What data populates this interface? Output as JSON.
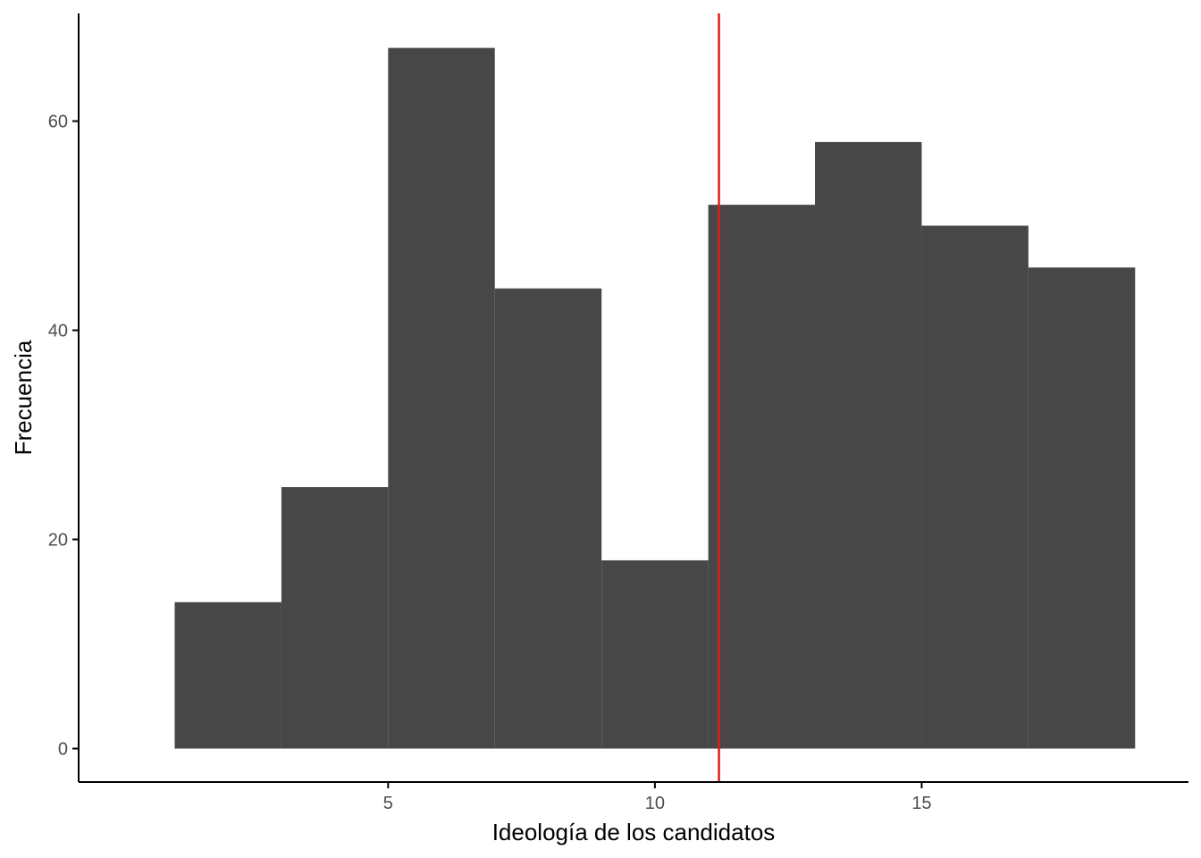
{
  "chart_data": {
    "type": "bar",
    "subtype": "histogram",
    "title": "",
    "xlabel": "Ideología de los candidatos",
    "ylabel": "Frecuencia",
    "bins": [
      {
        "start": 1,
        "end": 3,
        "value": 14
      },
      {
        "start": 3,
        "end": 5,
        "value": 25
      },
      {
        "start": 5,
        "end": 7,
        "value": 67
      },
      {
        "start": 7,
        "end": 9,
        "value": 44
      },
      {
        "start": 9,
        "end": 11,
        "value": 18
      },
      {
        "start": 11,
        "end": 13,
        "value": 52
      },
      {
        "start": 13,
        "end": 15,
        "value": 58
      },
      {
        "start": 15,
        "end": 17,
        "value": 50
      },
      {
        "start": 17,
        "end": 19,
        "value": 46
      }
    ],
    "xlim": [
      -0.8,
      20.0
    ],
    "ylim": [
      -3.2,
      70.3
    ],
    "xticks": [
      5,
      10,
      15
    ],
    "yticks": [
      0,
      20,
      40,
      60
    ],
    "vline": {
      "x": 11.2,
      "color": "#e41a1c"
    },
    "bar_color": "#474747",
    "grid": false,
    "legend": "none"
  }
}
